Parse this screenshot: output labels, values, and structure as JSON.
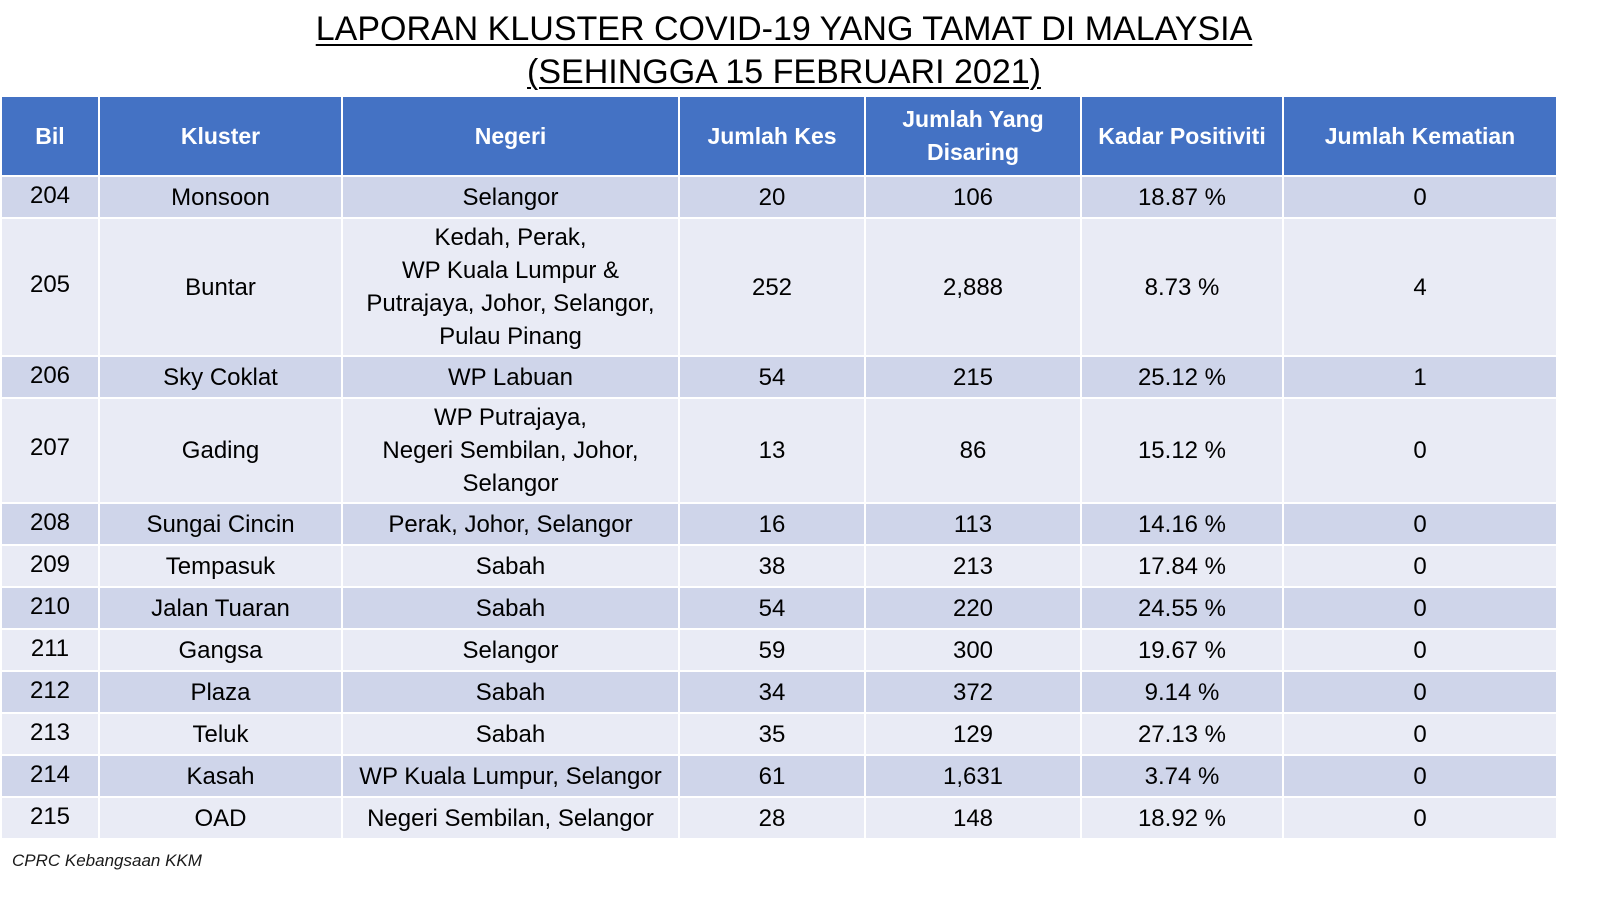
{
  "title": {
    "line1": "LAPORAN KLUSTER COVID-19 YANG TAMAT DI MALAYSIA",
    "line2": "(SEHINGGA 15 FEBRUARI 2021)"
  },
  "table": {
    "headers": {
      "bil": "Bil",
      "kluster": "Kluster",
      "negeri": "Negeri",
      "jumlah_kes": "Jumlah Kes",
      "jumlah_disaring_l1": "Jumlah Yang",
      "jumlah_disaring_l2": "Disaring",
      "kadar_positiviti": "Kadar Positiviti",
      "jumlah_kematian": "Jumlah Kematian"
    },
    "rows": [
      {
        "bil": "204",
        "kluster": "Monsoon",
        "negeri": [
          "Selangor"
        ],
        "kes": "20",
        "disaring": "106",
        "positiviti": "18.87 %",
        "kematian": "0"
      },
      {
        "bil": "205",
        "kluster": "Buntar",
        "negeri": [
          "Kedah, Perak,",
          "WP Kuala Lumpur &",
          "Putrajaya, Johor, Selangor,",
          "Pulau Pinang"
        ],
        "kes": "252",
        "disaring": "2,888",
        "positiviti": "8.73 %",
        "kematian": "4"
      },
      {
        "bil": "206",
        "kluster": "Sky Coklat",
        "negeri": [
          "WP Labuan"
        ],
        "kes": "54",
        "disaring": "215",
        "positiviti": "25.12 %",
        "kematian": "1"
      },
      {
        "bil": "207",
        "kluster": "Gading",
        "negeri": [
          "WP Putrajaya,",
          "Negeri Sembilan, Johor,",
          "Selangor"
        ],
        "kes": "13",
        "disaring": "86",
        "positiviti": "15.12 %",
        "kematian": "0"
      },
      {
        "bil": "208",
        "kluster": "Sungai Cincin",
        "negeri": [
          "Perak, Johor, Selangor"
        ],
        "kes": "16",
        "disaring": "113",
        "positiviti": "14.16 %",
        "kematian": "0"
      },
      {
        "bil": "209",
        "kluster": "Tempasuk",
        "negeri": [
          "Sabah"
        ],
        "kes": "38",
        "disaring": "213",
        "positiviti": "17.84 %",
        "kematian": "0"
      },
      {
        "bil": "210",
        "kluster": "Jalan Tuaran",
        "negeri": [
          "Sabah"
        ],
        "kes": "54",
        "disaring": "220",
        "positiviti": "24.55 %",
        "kematian": "0"
      },
      {
        "bil": "211",
        "kluster": "Gangsa",
        "negeri": [
          "Selangor"
        ],
        "kes": "59",
        "disaring": "300",
        "positiviti": "19.67 %",
        "kematian": "0"
      },
      {
        "bil": "212",
        "kluster": "Plaza",
        "negeri": [
          "Sabah"
        ],
        "kes": "34",
        "disaring": "372",
        "positiviti": "9.14 %",
        "kematian": "0"
      },
      {
        "bil": "213",
        "kluster": "Teluk",
        "negeri": [
          "Sabah"
        ],
        "kes": "35",
        "disaring": "129",
        "positiviti": "27.13 %",
        "kematian": "0"
      },
      {
        "bil": "214",
        "kluster": "Kasah",
        "negeri": [
          "WP Kuala Lumpur, Selangor"
        ],
        "kes": "61",
        "disaring": "1,631",
        "positiviti": "3.74 %",
        "kematian": "0"
      },
      {
        "bil": "215",
        "kluster": "OAD",
        "negeri": [
          "Negeri Sembilan, Selangor"
        ],
        "kes": "28",
        "disaring": "148",
        "positiviti": "18.92 %",
        "kematian": "0"
      }
    ]
  },
  "source": "CPRC Kebangsaan KKM",
  "colors": {
    "header_bg": "#4472c4",
    "row_dark": "#cfd5ea",
    "row_light": "#e9ebf5"
  }
}
